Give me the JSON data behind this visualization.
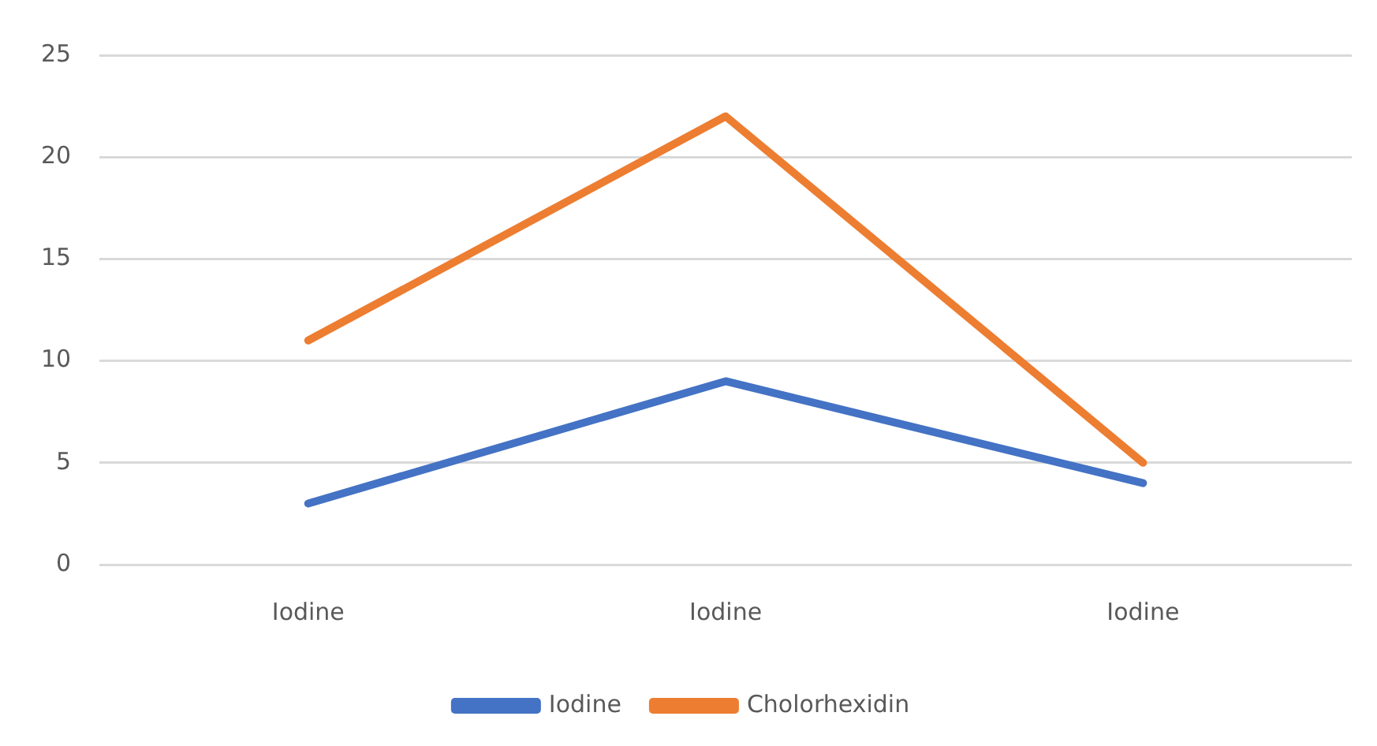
{
  "chart_data": {
    "type": "line",
    "categories": [
      "Iodine",
      "Iodine",
      "Iodine"
    ],
    "series": [
      {
        "name": "Iodine",
        "color": "#4472c4",
        "values": [
          3,
          9,
          4
        ]
      },
      {
        "name": "Cholorhexidin",
        "color": "#ed7d31",
        "values": [
          11,
          22,
          5
        ]
      }
    ],
    "ylim": [
      0,
      25
    ],
    "yticks": [
      0,
      5,
      10,
      15,
      20,
      25
    ],
    "grid": "y",
    "legend": "bottom",
    "marker": "none",
    "line_style": "solid"
  }
}
